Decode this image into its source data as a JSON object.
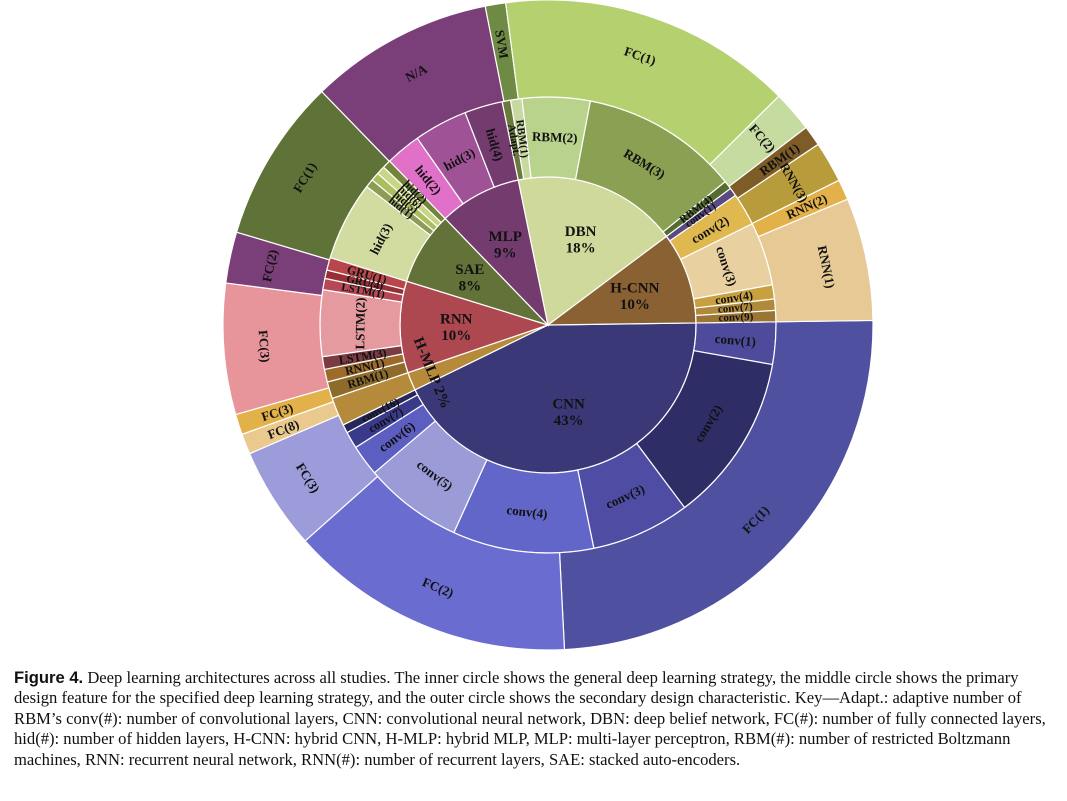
{
  "chart_data": {
    "type": "sunburst",
    "inner_ring": [
      {
        "label": "CNN",
        "value": 43,
        "display": "43%",
        "color": "#3a3877"
      },
      {
        "label": "H-MLP",
        "value": 2,
        "display": "2%",
        "color": "#b58a3a"
      },
      {
        "label": "RNN",
        "value": 10,
        "display": "10%",
        "color": "#ad4850"
      },
      {
        "label": "SAE",
        "value": 8,
        "display": "8%",
        "color": "#627238"
      },
      {
        "label": "MLP",
        "value": 9,
        "display": "9%",
        "color": "#743c6e"
      },
      {
        "label": "DBN",
        "value": 18,
        "display": "18%",
        "color": "#ced99b"
      },
      {
        "label": "H-CNN",
        "value": 10,
        "display": "10%",
        "color": "#8a6132"
      }
    ],
    "middle_ring": [
      {
        "label": "conv(1)",
        "parent": "CNN",
        "value": 3.0
      },
      {
        "label": "conv(2)",
        "parent": "CNN",
        "value": 12.0
      },
      {
        "label": "conv(3)",
        "parent": "CNN",
        "value": 7.0
      },
      {
        "label": "conv(4)",
        "parent": "CNN",
        "value": 10.0
      },
      {
        "label": "conv(5)",
        "parent": "CNN",
        "value": 7.0
      },
      {
        "label": "conv(6)",
        "parent": "CNN",
        "value": 2.2
      },
      {
        "label": "conv(7)",
        "parent": "CNN",
        "value": 1.2
      },
      {
        "label": "conv(16)",
        "parent": "CNN",
        "value": 0.6
      },
      {
        "label": "",
        "parent": "H-MLP",
        "value": 2.0
      },
      {
        "label": "RBM(1)",
        "parent": "RNN",
        "value": 1.2
      },
      {
        "label": "RNN(1)",
        "parent": "RNN",
        "value": 0.9
      },
      {
        "label": "LSTM(3)",
        "parent": "RNN",
        "value": 0.9
      },
      {
        "label": "LSTM(2)",
        "parent": "RNN",
        "value": 4.7
      },
      {
        "label": "LSTM(1)",
        "parent": "RNN",
        "value": 0.8
      },
      {
        "label": "GRU(4)",
        "parent": "RNN",
        "value": 0.6
      },
      {
        "label": "GRU(1)",
        "parent": "RNN",
        "value": 0.9
      },
      {
        "label": "hid(3)",
        "parent": "SAE",
        "value": 5.6
      },
      {
        "label": "hid(1)",
        "parent": "SAE",
        "value": 0.6
      },
      {
        "label": "hid(5)",
        "parent": "SAE",
        "value": 0.6
      },
      {
        "label": "hid(6)",
        "parent": "SAE",
        "value": 0.6
      },
      {
        "label": "hid(2)",
        "parent": "SAE",
        "value": 0.6
      },
      {
        "label": "hid(2)",
        "parent": "MLP",
        "value": 2.5
      },
      {
        "label": "hid(3)",
        "parent": "MLP",
        "value": 3.8
      },
      {
        "label": "hid(4)",
        "parent": "MLP",
        "value": 2.7
      },
      {
        "label": "Adapt.",
        "parent": "DBN",
        "value": 0.6
      },
      {
        "label": "RBM(1)",
        "parent": "DBN",
        "value": 0.8
      },
      {
        "label": "RBM(2)",
        "parent": "DBN",
        "value": 4.8
      },
      {
        "label": "RBM(3)",
        "parent": "DBN",
        "value": 11.2
      },
      {
        "label": "RBM(4)",
        "parent": "DBN",
        "value": 0.6
      },
      {
        "label": "conv(1)",
        "parent": "H-CNN",
        "value": 0.6
      },
      {
        "label": "conv(2)",
        "parent": "H-CNN",
        "value": 2.3
      },
      {
        "label": "conv(3)",
        "parent": "H-CNN",
        "value": 4.5
      },
      {
        "label": "conv(4)",
        "parent": "H-CNN",
        "value": 1.0
      },
      {
        "label": "conv(7)",
        "parent": "H-CNN",
        "value": 0.8
      },
      {
        "label": "conv(9)",
        "parent": "H-CNN",
        "value": 0.8
      }
    ],
    "outer_ring": [
      {
        "label": "FC(1)",
        "value": 24.0
      },
      {
        "label": "FC(2)",
        "value": 14.0
      },
      {
        "label": "FC(3)",
        "value": 5.0
      },
      {
        "label": "FC(8)",
        "value": 1.0
      },
      {
        "label": "FC(3)",
        "value": 1.0
      },
      {
        "label": "FC(3)",
        "value": 6.4
      },
      {
        "label": "FC(2)",
        "value": 2.5
      },
      {
        "label": "FC(1)",
        "value": 8.0
      },
      {
        "label": "N/A",
        "value": 9.0
      },
      {
        "label": "SVM",
        "value": 1.0
      },
      {
        "label": "FC(1)",
        "value": 14.4
      },
      {
        "label": "FC(2)",
        "value": 2.0
      },
      {
        "label": "RBM(1)",
        "value": 1.0
      },
      {
        "label": "RNN(3)",
        "value": 2.0
      },
      {
        "label": "RNN(2)",
        "value": 1.0
      },
      {
        "label": "RNN(1)",
        "value": 6.0
      }
    ],
    "inner_label_color": "#111111"
  },
  "caption": {
    "label": "Figure 4.",
    "text": "Deep learning architectures across all studies. The inner circle shows the general deep learning strategy, the middle circle shows the primary design feature for the specified deep learning strategy, and the outer circle shows the secondary design characteristic. Key—Adapt.: adaptive number of RBM’s conv(#): number of convolutional layers, CNN: convolutional neural network, DBN: deep belief network, FC(#): number of fully connected layers, hid(#): number of hidden layers, H-CNN: hybrid CNN, H-MLP: hybrid MLP, MLP: multi-layer perceptron, RBM(#): number of restricted Boltzmann machines, RNN: recurrent neural network, RNN(#): number of recurrent layers, SAE: stacked auto-encoders."
  }
}
